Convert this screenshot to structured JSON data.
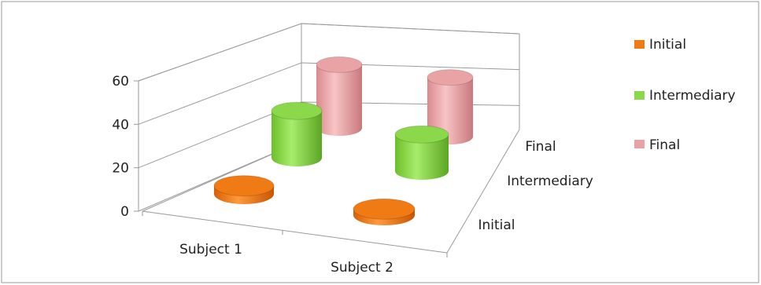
{
  "chart_data": {
    "type": "bar",
    "style": "3d-cylinder",
    "categories": [
      "Subject 1",
      "Subject 2"
    ],
    "depth_labels": [
      "Initial",
      "Intermediary",
      "Final"
    ],
    "series": [
      {
        "name": "Initial",
        "values": [
          4,
          3
        ],
        "color": "#f07a14"
      },
      {
        "name": "Intermediary",
        "values": [
          23,
          18
        ],
        "color": "#8bd94a"
      },
      {
        "name": "Final",
        "values": [
          31,
          29
        ],
        "color": "#eaa3a5"
      }
    ],
    "y_ticks": [
      "0",
      "20",
      "40",
      "60"
    ],
    "ylim": [
      0,
      60
    ],
    "title": "",
    "xlabel": "",
    "ylabel": "",
    "grid": true,
    "legend_position": "right"
  }
}
